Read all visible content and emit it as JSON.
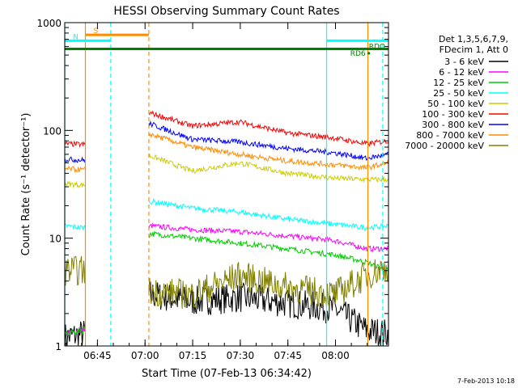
{
  "chart_data": {
    "type": "line",
    "title": "HESSI Observing Summary Count Rates",
    "xlabel": "Start Time (07-Feb-13 06:34:42)",
    "ylabel": "Count Rate (s⁻¹ detector⁻¹)",
    "yscale": "log",
    "ylim": [
      1,
      1000
    ],
    "xlim_minutes": [
      0,
      102
    ],
    "x_ticks": [
      {
        "label": "06:45",
        "t": 10.3
      },
      {
        "label": "07:00",
        "t": 25.3
      },
      {
        "label": "07:15",
        "t": 40.3
      },
      {
        "label": "07:30",
        "t": 55.3
      },
      {
        "label": "07:45",
        "t": 70.3
      },
      {
        "label": "08:00",
        "t": 85.3
      }
    ],
    "y_ticks": [
      "1",
      "10",
      "100",
      "1000"
    ],
    "legend_header": [
      "Det 1,3,5,6,7,9,",
      "FDecim 1, Att 0"
    ],
    "data_gaps": [
      [
        6.5,
        26.5
      ]
    ],
    "series": [
      {
        "name": "3 - 6 keV",
        "color": "#000000",
        "t": [
          0,
          6,
          27,
          40,
          55,
          70,
          85,
          95,
          102
        ],
        "values": [
          1.2,
          1.3,
          3.0,
          2.6,
          2.8,
          2.5,
          2.2,
          1.4,
          1.3
        ]
      },
      {
        "name": "6 - 12 keV",
        "color": "#ff00ff",
        "t": [
          0,
          6,
          27,
          40,
          55,
          70,
          85,
          95,
          102
        ],
        "values": [
          1.3,
          1.4,
          13,
          12,
          11.5,
          10.5,
          9.5,
          8,
          8
        ]
      },
      {
        "name": "12 - 25 keV",
        "color": "#00cc00",
        "t": [
          0,
          6,
          27,
          40,
          55,
          70,
          85,
          95,
          102
        ],
        "values": [
          1.3,
          1.4,
          11,
          10,
          9,
          8,
          7,
          6,
          5
        ]
      },
      {
        "name": "25 - 50 keV",
        "color": "#00ffff",
        "t": [
          0,
          6,
          27,
          40,
          55,
          70,
          85,
          95,
          102
        ],
        "values": [
          13,
          12.5,
          22,
          19,
          17.5,
          15,
          13.5,
          12.5,
          13
        ]
      },
      {
        "name": "50 - 100 keV",
        "color": "#cccc00",
        "t": [
          0,
          6,
          27,
          40,
          55,
          70,
          85,
          95,
          102
        ],
        "values": [
          32,
          31,
          58,
          42,
          50,
          40,
          36,
          35,
          35
        ]
      },
      {
        "name": "100 - 300 keV",
        "color": "#ff0000",
        "t": [
          0,
          6,
          27,
          40,
          55,
          70,
          85,
          95,
          102
        ],
        "values": [
          75,
          74,
          145,
          110,
          120,
          95,
          85,
          75,
          80
        ]
      },
      {
        "name": "300 - 800 keV",
        "color": "#0000ff",
        "t": [
          0,
          6,
          27,
          40,
          55,
          70,
          85,
          95,
          102
        ],
        "values": [
          54,
          53,
          115,
          83,
          78,
          68,
          62,
          55,
          60
        ]
      },
      {
        "name": "800 - 7000 keV",
        "color": "#ff8c00",
        "t": [
          0,
          6,
          27,
          40,
          55,
          70,
          85,
          95,
          102
        ],
        "values": [
          44,
          43,
          92,
          70,
          60,
          52,
          48,
          45,
          50
        ]
      },
      {
        "name": "7000 - 20000 keV",
        "color": "#808000",
        "t": [
          0,
          6,
          27,
          40,
          55,
          70,
          85,
          95,
          102
        ],
        "values": [
          5,
          5,
          3.2,
          3.0,
          4.5,
          3.5,
          3.0,
          4.5,
          5.5
        ]
      }
    ],
    "annotations": {
      "bars": [
        {
          "label": "S",
          "color": "#ff8c00",
          "t_start": 6.5,
          "t_end": 26.5,
          "y": 770
        },
        {
          "label": "N",
          "color": "#00ffff",
          "t_start": 0,
          "t_end": 14.5,
          "y": 680
        },
        {
          "label": "",
          "color": "#00ffff",
          "t_start": 82.5,
          "t_end": 102,
          "y": 680
        },
        {
          "label": "",
          "color": "#008000",
          "t_start": 0,
          "t_end": 102,
          "y": 570
        },
        {
          "label": "RD6",
          "color": "#008000",
          "t_start": 95.8,
          "t_end": 95.8,
          "y": 520
        },
        {
          "label": "RDO",
          "color": "#008000",
          "t_start": 102,
          "t_end": 102,
          "y": 600
        }
      ],
      "vlines": [
        {
          "t": 0,
          "color": "#00ffff",
          "style": "solid"
        },
        {
          "t": 6.5,
          "color": "#ff8c00",
          "style": "solid"
        },
        {
          "t": 14.5,
          "color": "#00ffff",
          "style": "dashed"
        },
        {
          "t": 26.5,
          "color": "#ff8c00",
          "style": "dashed"
        },
        {
          "t": 82.5,
          "color": "#00ffff",
          "style": "solid"
        },
        {
          "t": 95.5,
          "color": "#ff8c00",
          "style": "solid"
        },
        {
          "t": 100.2,
          "color": "#00ffff",
          "style": "dashed"
        }
      ]
    },
    "footer_date": "7-Feb-2013 10:18"
  }
}
